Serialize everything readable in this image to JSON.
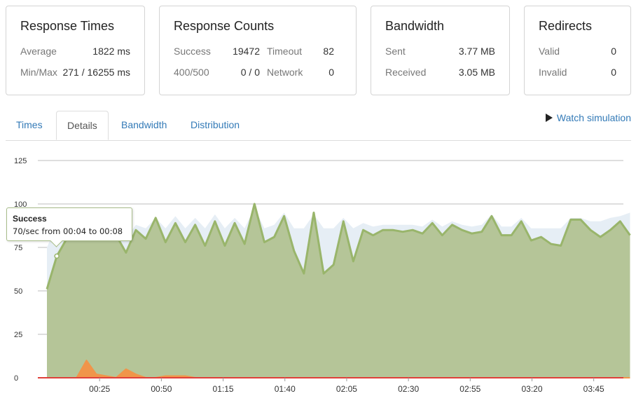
{
  "cards": {
    "response_times": {
      "title": "Response Times",
      "rows": [
        {
          "label": "Average",
          "value": "1822 ms"
        },
        {
          "label": "Min/Max",
          "value": "271 / 16255 ms"
        }
      ]
    },
    "response_counts": {
      "title": "Response Counts",
      "success_label": "Success",
      "success_value": "19472",
      "timeout_label": "Timeout",
      "timeout_value": "82",
      "errors_label": "400/500",
      "errors_value": "0 / 0",
      "network_label": "Network",
      "network_value": "0"
    },
    "bandwidth": {
      "title": "Bandwidth",
      "rows": [
        {
          "label": "Sent",
          "value": "3.77 MB"
        },
        {
          "label": "Received",
          "value": "3.05 MB"
        }
      ]
    },
    "redirects": {
      "title": "Redirects",
      "rows": [
        {
          "label": "Valid",
          "value": "0"
        },
        {
          "label": "Invalid",
          "value": "0"
        }
      ]
    }
  },
  "tabs": [
    "Times",
    "Details",
    "Bandwidth",
    "Distribution"
  ],
  "active_tab": "Details",
  "watch_label": "Watch simulation",
  "icons": {
    "watch": "play-icon"
  },
  "tooltip": {
    "title": "Success",
    "text": "70/sec from 00:04 to 00:08"
  },
  "colors": {
    "success_fill": "#b5c598",
    "success_line": "#99b56b",
    "background_series": "#e6eef5",
    "error_fill": "#f0954a",
    "zero_line": "#e0403a",
    "link": "#337ab7"
  },
  "chart_data": {
    "type": "area",
    "ylim": [
      0,
      125
    ],
    "y_ticks": [
      0,
      25,
      50,
      75,
      100,
      125
    ],
    "x_tick_labels": [
      "00:25",
      "00:50",
      "01:15",
      "01:40",
      "02:05",
      "02:30",
      "02:55",
      "03:20",
      "03:45"
    ],
    "x_tick_seconds": [
      25,
      50,
      75,
      100,
      125,
      150,
      175,
      200,
      225
    ],
    "interval_seconds": 4,
    "x_start_seconds": 0,
    "series": [
      {
        "name": "Success",
        "values": [
          51,
          70,
          80,
          84,
          80,
          84,
          92,
          82,
          72,
          85,
          80,
          92,
          78,
          89,
          78,
          88,
          76,
          90,
          76,
          89,
          77,
          100,
          78,
          81,
          93,
          73,
          60,
          95,
          60,
          65,
          90,
          67,
          85,
          82,
          85,
          85,
          84,
          85,
          83,
          89,
          82,
          88,
          85,
          83,
          84,
          93,
          82,
          82,
          90,
          79,
          81,
          77,
          76,
          91,
          91,
          85,
          81,
          85,
          90,
          82
        ]
      },
      {
        "values": [
          75,
          88,
          80,
          80,
          82,
          82,
          90,
          85,
          80,
          88,
          86,
          92,
          86,
          93,
          86,
          92,
          86,
          94,
          86,
          92,
          86,
          98,
          86,
          88,
          95,
          86,
          86,
          94,
          86,
          86,
          92,
          86,
          89,
          87,
          88,
          88,
          88,
          88,
          87,
          91,
          87,
          90,
          88,
          87,
          88,
          94,
          87,
          87,
          92,
          86,
          86,
          86,
          86,
          92,
          92,
          90,
          90,
          92,
          93,
          95
        ]
      },
      {
        "values": [
          0,
          0,
          0,
          0,
          10,
          2,
          1,
          0,
          5,
          2,
          0,
          0,
          1,
          1,
          1,
          0,
          0,
          0,
          0,
          0,
          0,
          0,
          0,
          0,
          0,
          0,
          0,
          0,
          0,
          0,
          0,
          0,
          0,
          0,
          0,
          0,
          0,
          0,
          0,
          0,
          0,
          0,
          0,
          0,
          0,
          0,
          0,
          0,
          0,
          0,
          0,
          0,
          0,
          0,
          0,
          0,
          0,
          0,
          0,
          0
        ]
      }
    ]
  }
}
